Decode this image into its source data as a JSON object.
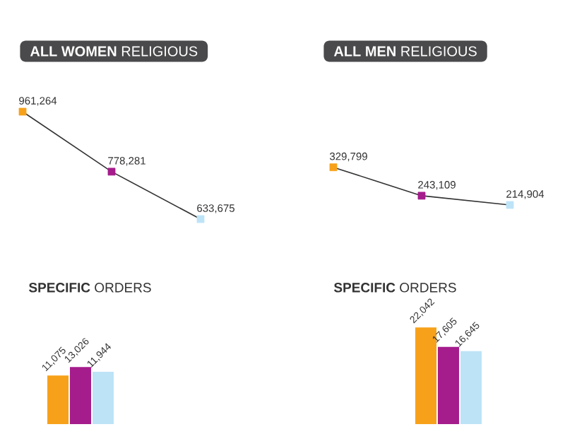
{
  "chart_data": [
    {
      "type": "line",
      "title": "**ALL WOMEN** RELIGIOUS",
      "categories": [
        null,
        null,
        null
      ],
      "values": [
        961264,
        778281,
        633675
      ],
      "value_labels": [
        "961,264",
        "778,281",
        "633,675"
      ],
      "color": "#333333",
      "colors": [
        "#f7a11a",
        "#a51c8c",
        "#bde3f7"
      ],
      "marker": "square",
      "tick_labels": false
    },
    {
      "type": "line",
      "title": "**ALL MEN** RELIGIOUS",
      "categories": [
        null,
        null,
        null
      ],
      "values": [
        329799,
        243109,
        214904
      ],
      "value_labels": [
        "329,799",
        "243,109",
        "214,904"
      ],
      "color": "#333333",
      "colors": [
        "#f7a11a",
        "#a51c8c",
        "#bde3f7"
      ],
      "marker": "square",
      "tick_labels": false
    },
    {
      "type": "bar",
      "title": "**SPECIFIC** ORDERS",
      "categories": [
        null
      ],
      "series": [
        {
          "color": "#f7a11a",
          "values": [
            11075
          ],
          "value_labels": [
            "11,075"
          ]
        },
        {
          "color": "#a51c8c",
          "values": [
            13026
          ],
          "value_labels": [
            "13,026"
          ]
        },
        {
          "color": "#bde3f7",
          "values": [
            11944
          ],
          "value_labels": [
            "11,944"
          ]
        }
      ],
      "tick_labels": false
    },
    {
      "type": "bar",
      "title": "**SPECIFIC** ORDERS",
      "categories": [
        null
      ],
      "series": [
        {
          "color": "#f7a11a",
          "values": [
            22042
          ],
          "value_labels": [
            "22,042"
          ]
        },
        {
          "color": "#a51c8c",
          "values": [
            17605
          ],
          "value_labels": [
            "17,605"
          ]
        },
        {
          "color": "#bde3f7",
          "values": [
            16645
          ],
          "value_labels": [
            "16,645"
          ]
        }
      ],
      "tick_labels": false
    }
  ]
}
